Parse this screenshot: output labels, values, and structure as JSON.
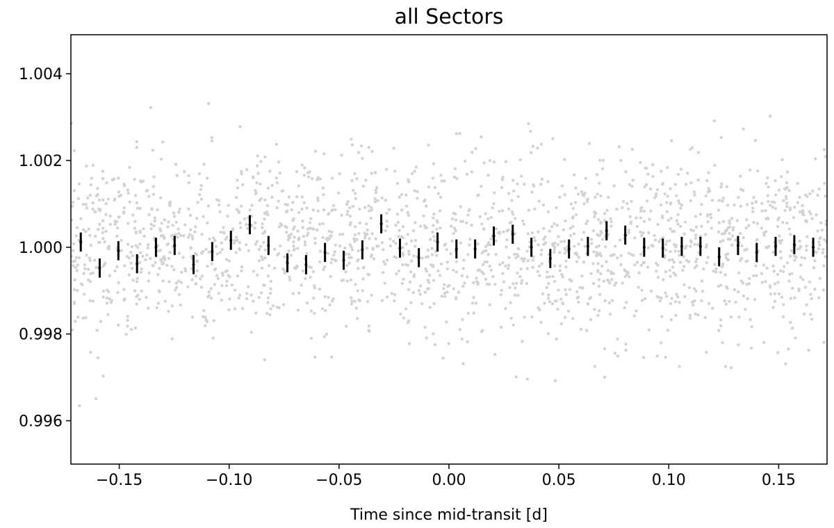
{
  "chart_data": {
    "type": "scatter",
    "title": "all Sectors",
    "xlabel": "Time since mid-transit [d]",
    "ylabel": "",
    "xlim": [
      -0.172,
      0.172
    ],
    "ylim": [
      0.995,
      1.0049
    ],
    "x_ticks": [
      -0.15,
      -0.1,
      -0.05,
      0.0,
      0.05,
      0.1,
      0.15
    ],
    "x_tick_labels": [
      "−0.15",
      "−0.10",
      "−0.05",
      "0.00",
      "0.05",
      "0.10",
      "0.15"
    ],
    "y_ticks": [
      0.996,
      0.998,
      1.0,
      1.002,
      1.004
    ],
    "y_tick_labels": [
      "0.996",
      "0.998",
      "1.000",
      "1.002",
      "1.004"
    ],
    "grid": false,
    "colors": {
      "raw_points": "#d3d3d3",
      "binned": "#000000",
      "axes": "#000000"
    },
    "series": [
      {
        "kind": "binned_errorbar",
        "x": [
          -0.1675,
          -0.1589,
          -0.1504,
          -0.1419,
          -0.1333,
          -0.1248,
          -0.1162,
          -0.1077,
          -0.0992,
          -0.0906,
          -0.0821,
          -0.0735,
          -0.065,
          -0.0564,
          -0.0479,
          -0.0394,
          -0.0308,
          -0.0223,
          -0.0137,
          -0.0052,
          0.0034,
          0.0119,
          0.0204,
          0.029,
          0.0375,
          0.0461,
          0.0546,
          0.0632,
          0.0717,
          0.0802,
          0.0888,
          0.0973,
          0.1059,
          0.1144,
          0.1229,
          0.1315,
          0.14,
          0.1486,
          0.1571,
          0.1657
        ],
        "y": [
          1.00012,
          0.99952,
          0.99992,
          0.99962,
          1.0,
          1.00004,
          0.9996,
          0.9999,
          1.00016,
          1.00052,
          1.00004,
          0.99964,
          0.9996,
          0.99988,
          0.9997,
          0.99994,
          1.00054,
          0.99998,
          0.99976,
          1.00012,
          0.99996,
          0.99996,
          1.00026,
          1.0003,
          1.0,
          0.99974,
          0.99996,
          1.00002,
          1.00038,
          1.00028,
          1.0,
          0.99998,
          1.00002,
          1.00002,
          0.99978,
          1.00004,
          0.99988,
          1.00002,
          1.00006,
          1.0
        ],
        "yerr": 0.00022
      }
    ],
    "raw_points_summary": {
      "count": 2000,
      "center": 1.0,
      "scatter_sigma": 0.00105,
      "x_range": [
        -0.172,
        0.172
      ]
    }
  }
}
